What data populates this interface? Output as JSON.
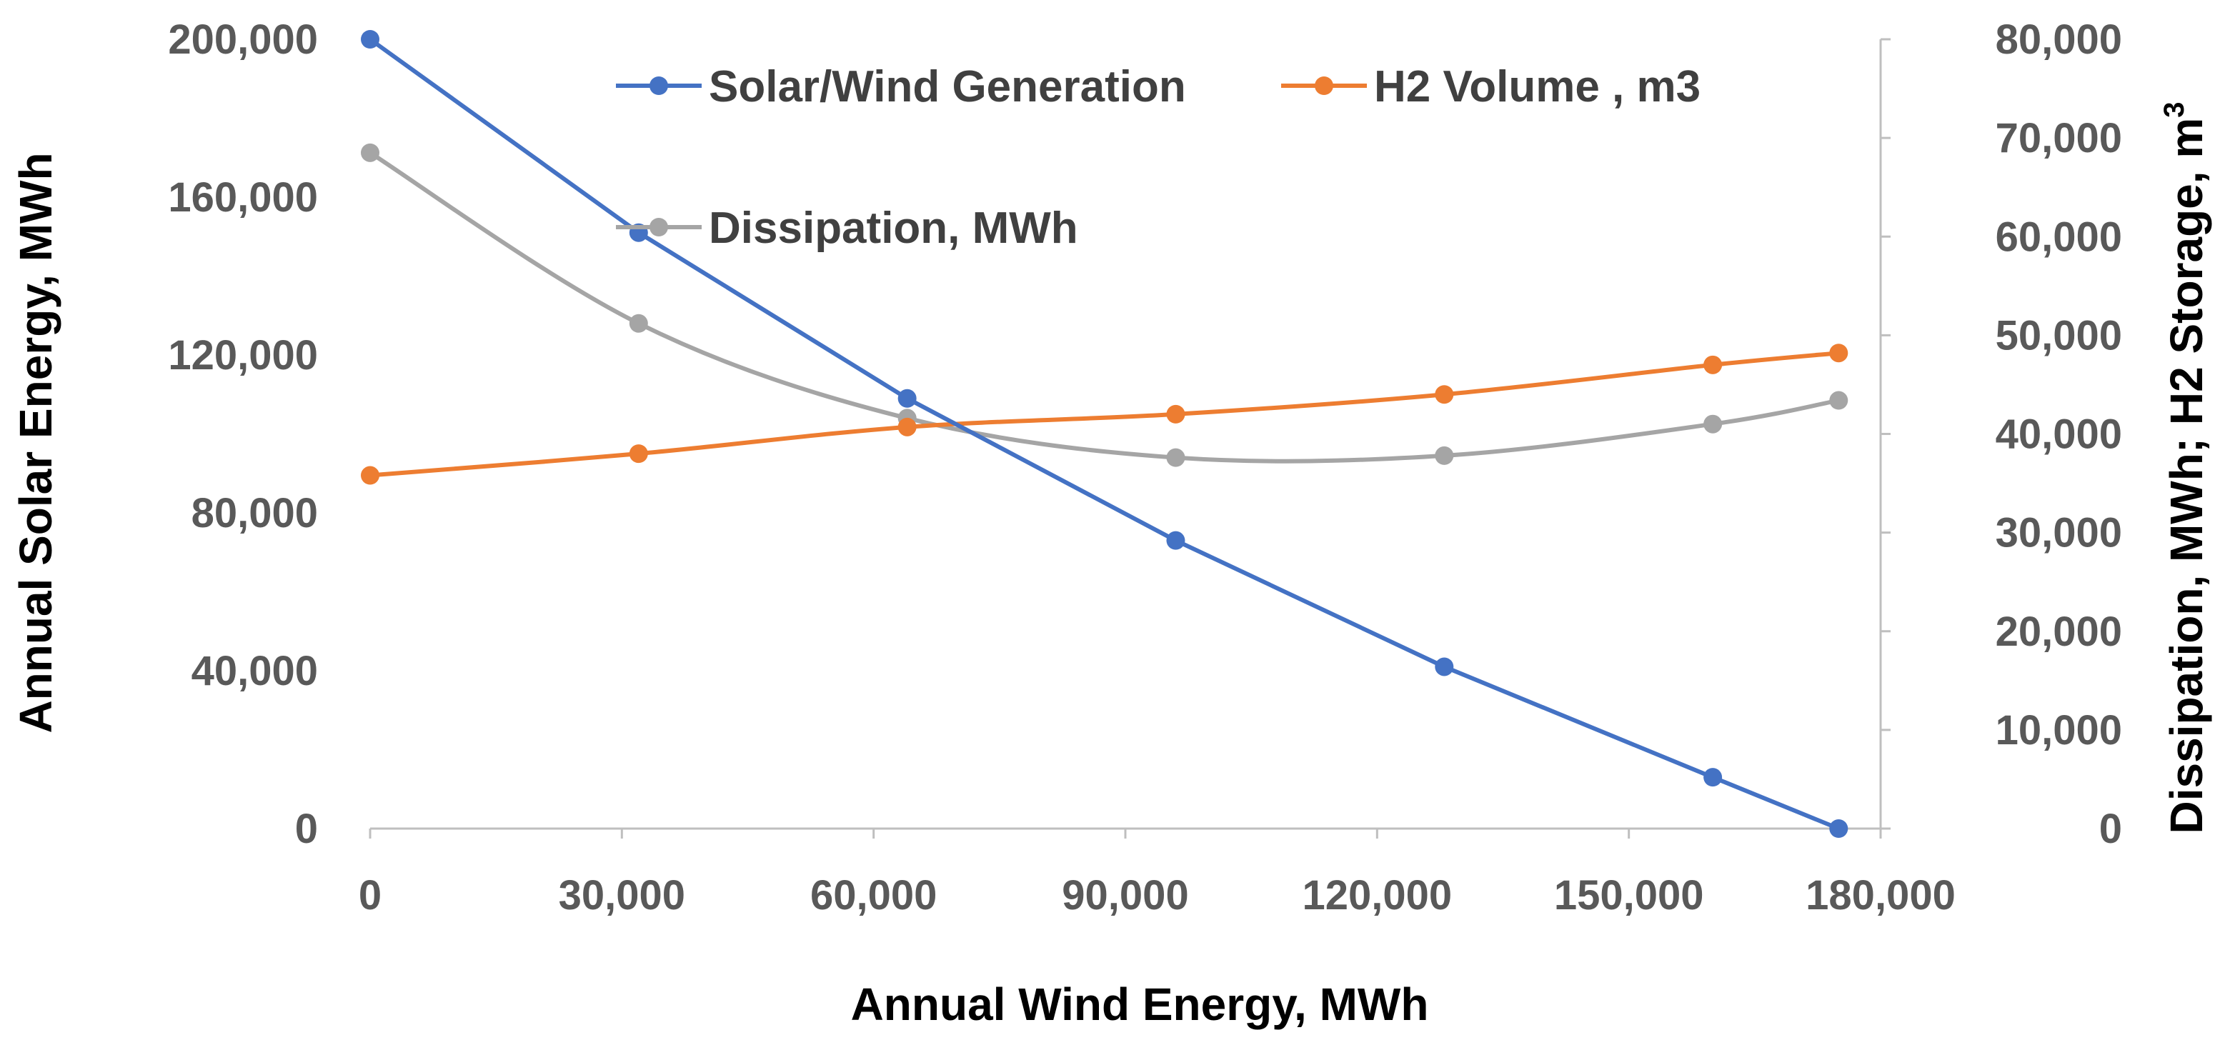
{
  "chart_data": {
    "type": "line",
    "title": "",
    "xlabel": "Annual Wind Energy, MWh",
    "ylabel_left": "Annual Solar Energy, MWh",
    "ylabel_right": "Dissipation, MWh; H2 Storage, m",
    "ylabel_right_superscript": "3",
    "xlim": [
      0,
      180000
    ],
    "ylim_left": [
      0,
      200000
    ],
    "ylim_right": [
      0,
      80000
    ],
    "x_ticks": [
      "0",
      "30,000",
      "60,000",
      "90,000",
      "120,000",
      "150,000",
      "180,000"
    ],
    "y_left_ticks": [
      "0",
      "40,000",
      "80,000",
      "120,000",
      "160,000",
      "200,000"
    ],
    "y_right_ticks": [
      "0",
      "10,000",
      "20,000",
      "30,000",
      "40,000",
      "50,000",
      "60,000",
      "70,000",
      "80,000"
    ],
    "grid": false,
    "legend_position": "top",
    "series": [
      {
        "name": "Solar/Wind Generation",
        "axis": "left",
        "color": "#4472C4",
        "smooth": false,
        "x": [
          0,
          32000,
          64000,
          96000,
          128000,
          160000,
          175000
        ],
        "values": [
          200000,
          151000,
          109000,
          73000,
          41000,
          13000,
          0
        ]
      },
      {
        "name": "H2 Volume , m3",
        "axis": "right",
        "color": "#ED7D31",
        "smooth": true,
        "x": [
          0,
          32000,
          64000,
          96000,
          128000,
          160000,
          175000
        ],
        "values": [
          35800,
          38000,
          40700,
          42000,
          44000,
          47000,
          48200
        ]
      },
      {
        "name": "Dissipation, MWh",
        "axis": "right",
        "color": "#A5A5A5",
        "smooth": true,
        "x": [
          0,
          32000,
          64000,
          96000,
          128000,
          160000,
          175000
        ],
        "values": [
          68500,
          51200,
          41600,
          37600,
          37800,
          41000,
          43400
        ]
      }
    ]
  }
}
